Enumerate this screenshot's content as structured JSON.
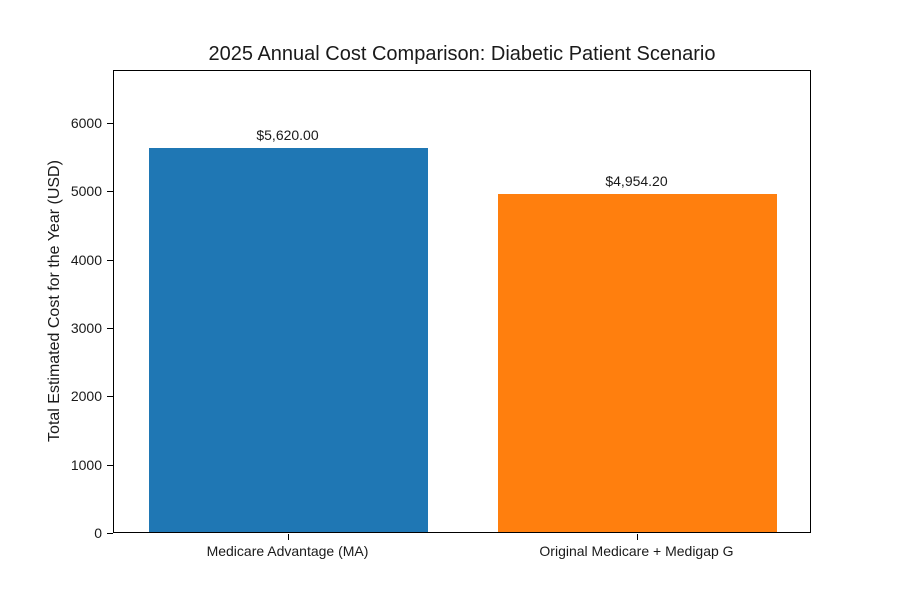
{
  "chart_data": {
    "type": "bar",
    "title": "2025 Annual Cost Comparison: Diabetic Patient Scenario",
    "xlabel": "",
    "ylabel": "Total Estimated Cost for the Year (USD)",
    "categories": [
      "Medicare Advantage (MA)",
      "Original Medicare + Medigap G"
    ],
    "values": [
      5620.0,
      4954.2
    ],
    "value_labels": [
      "$5,620.00",
      "$4,954.20"
    ],
    "bar_colors": [
      "#1f77b4",
      "#ff7f0e"
    ],
    "yticks": [
      0,
      1000,
      2000,
      3000,
      4000,
      5000,
      6000
    ],
    "ylim": [
      0,
      6778
    ],
    "grid": false,
    "legend": null,
    "colors": {
      "background": "#ffffff",
      "text": "#1a1a1a",
      "axis": "#000000"
    }
  }
}
